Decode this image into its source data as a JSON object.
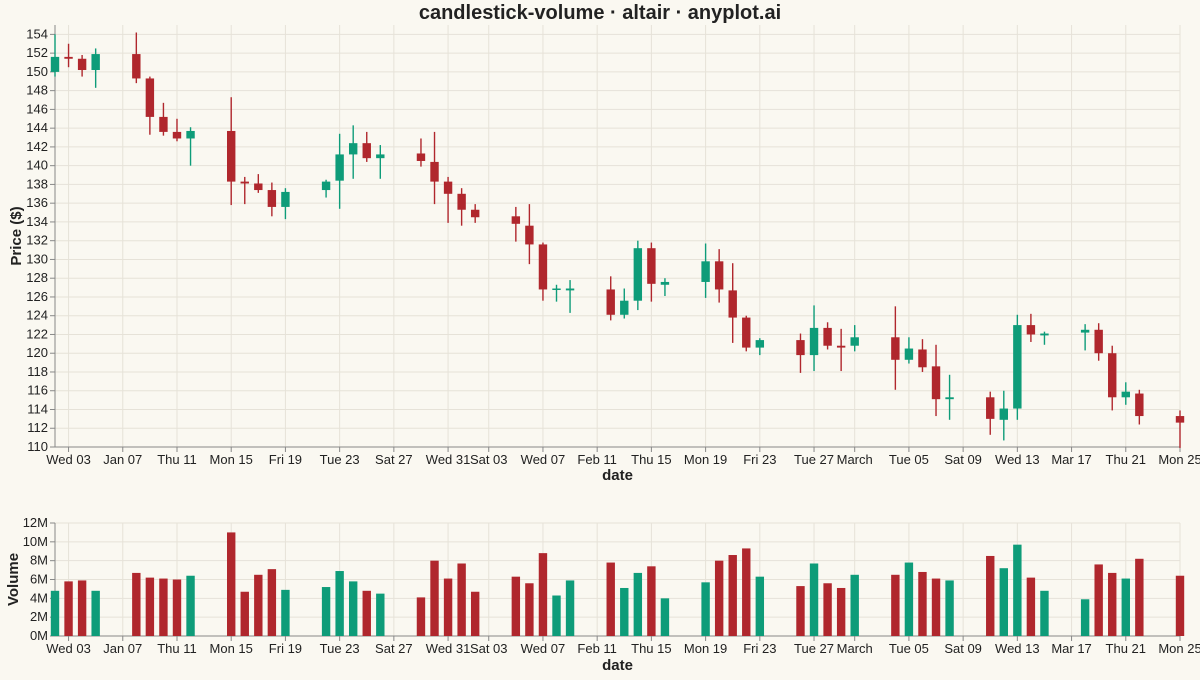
{
  "chart_data": {
    "type": "candlestick",
    "title": "candlestick-volume · altair · anyplot.ai",
    "colors": {
      "up": "#0e9c79",
      "down": "#b0272d",
      "background": "#faf8f1",
      "grid": "#e6e2d8"
    },
    "grid": true,
    "x_ticks": [
      {
        "date": "2024-01-03",
        "label": "Wed 03"
      },
      {
        "date": "2024-01-07",
        "label": "Jan 07"
      },
      {
        "date": "2024-01-11",
        "label": "Thu 11"
      },
      {
        "date": "2024-01-15",
        "label": "Mon 15"
      },
      {
        "date": "2024-01-19",
        "label": "Fri 19"
      },
      {
        "date": "2024-01-23",
        "label": "Tue 23"
      },
      {
        "date": "2024-01-27",
        "label": "Sat 27"
      },
      {
        "date": "2024-01-31",
        "label": "Wed 31"
      },
      {
        "date": "2024-02-03",
        "label": "Sat 03"
      },
      {
        "date": "2024-02-07",
        "label": "Wed 07"
      },
      {
        "date": "2024-02-11",
        "label": "Feb 11"
      },
      {
        "date": "2024-02-15",
        "label": "Thu 15"
      },
      {
        "date": "2024-02-19",
        "label": "Mon 19"
      },
      {
        "date": "2024-02-23",
        "label": "Fri 23"
      },
      {
        "date": "2024-02-27",
        "label": "Tue 27"
      },
      {
        "date": "2024-03-01",
        "label": "March"
      },
      {
        "date": "2024-03-05",
        "label": "Tue 05"
      },
      {
        "date": "2024-03-09",
        "label": "Sat 09"
      },
      {
        "date": "2024-03-13",
        "label": "Wed 13"
      },
      {
        "date": "2024-03-17",
        "label": "Mar 17"
      },
      {
        "date": "2024-03-21",
        "label": "Thu 21"
      },
      {
        "date": "2024-03-25",
        "label": "Mon 25"
      }
    ],
    "x_range": [
      "2024-01-02",
      "2024-03-25"
    ],
    "price_panel": {
      "ylabel": "Price ($)",
      "xlabel": "date",
      "ylim": [
        110,
        155
      ],
      "yticks": [
        110,
        112,
        114,
        116,
        118,
        120,
        122,
        124,
        126,
        128,
        130,
        132,
        134,
        136,
        138,
        140,
        142,
        144,
        146,
        148,
        150,
        152,
        154
      ]
    },
    "volume_panel": {
      "ylabel": "Volume",
      "xlabel": "date",
      "ylim": [
        0,
        12000000
      ],
      "yticks": [
        {
          "value": 0,
          "label": "0M"
        },
        {
          "value": 2000000,
          "label": "2M"
        },
        {
          "value": 4000000,
          "label": "4M"
        },
        {
          "value": 6000000,
          "label": "6M"
        },
        {
          "value": 8000000,
          "label": "8M"
        },
        {
          "value": 10000000,
          "label": "10M"
        },
        {
          "value": 12000000,
          "label": "12M"
        }
      ]
    },
    "candles": [
      {
        "date": "2024-01-02",
        "open": 150.0,
        "high": 154.0,
        "low": 149.5,
        "close": 151.6,
        "volume": 4800000
      },
      {
        "date": "2024-01-03",
        "open": 151.6,
        "high": 153.0,
        "low": 150.5,
        "close": 151.4,
        "volume": 5800000
      },
      {
        "date": "2024-01-04",
        "open": 151.4,
        "high": 151.8,
        "low": 149.5,
        "close": 150.2,
        "volume": 5900000
      },
      {
        "date": "2024-01-05",
        "open": 150.2,
        "high": 152.5,
        "low": 148.3,
        "close": 151.9,
        "volume": 4800000
      },
      {
        "date": "2024-01-08",
        "open": 151.9,
        "high": 154.2,
        "low": 148.8,
        "close": 149.3,
        "volume": 6700000
      },
      {
        "date": "2024-01-09",
        "open": 149.3,
        "high": 149.5,
        "low": 143.3,
        "close": 145.2,
        "volume": 6200000
      },
      {
        "date": "2024-01-10",
        "open": 145.2,
        "high": 146.7,
        "low": 143.2,
        "close": 143.6,
        "volume": 6100000
      },
      {
        "date": "2024-01-11",
        "open": 143.6,
        "high": 145.0,
        "low": 142.6,
        "close": 142.9,
        "volume": 6000000
      },
      {
        "date": "2024-01-12",
        "open": 142.9,
        "high": 144.1,
        "low": 140.0,
        "close": 143.7,
        "volume": 6400000
      },
      {
        "date": "2024-01-15",
        "open": 143.7,
        "high": 147.3,
        "low": 135.8,
        "close": 138.3,
        "volume": 11000000
      },
      {
        "date": "2024-01-16",
        "open": 138.3,
        "high": 138.8,
        "low": 135.9,
        "close": 138.1,
        "volume": 4700000
      },
      {
        "date": "2024-01-17",
        "open": 138.1,
        "high": 139.1,
        "low": 137.1,
        "close": 137.4,
        "volume": 6500000
      },
      {
        "date": "2024-01-18",
        "open": 137.4,
        "high": 138.2,
        "low": 134.6,
        "close": 135.6,
        "volume": 7100000
      },
      {
        "date": "2024-01-19",
        "open": 135.6,
        "high": 137.6,
        "low": 134.3,
        "close": 137.2,
        "volume": 4900000
      },
      {
        "date": "2024-01-22",
        "open": 137.4,
        "high": 138.5,
        "low": 136.6,
        "close": 138.3,
        "volume": 5200000
      },
      {
        "date": "2024-01-23",
        "open": 138.4,
        "high": 143.4,
        "low": 135.4,
        "close": 141.2,
        "volume": 6900000
      },
      {
        "date": "2024-01-24",
        "open": 141.2,
        "high": 144.3,
        "low": 138.6,
        "close": 142.4,
        "volume": 5800000
      },
      {
        "date": "2024-01-25",
        "open": 142.4,
        "high": 143.6,
        "low": 140.4,
        "close": 140.8,
        "volume": 4800000
      },
      {
        "date": "2024-01-26",
        "open": 140.8,
        "high": 142.2,
        "low": 138.6,
        "close": 141.2,
        "volume": 4500000
      },
      {
        "date": "2024-01-29",
        "open": 141.3,
        "high": 142.9,
        "low": 139.9,
        "close": 140.5,
        "volume": 4100000
      },
      {
        "date": "2024-01-30",
        "open": 140.4,
        "high": 143.6,
        "low": 135.9,
        "close": 138.3,
        "volume": 8000000
      },
      {
        "date": "2024-01-31",
        "open": 138.3,
        "high": 138.8,
        "low": 133.9,
        "close": 137.0,
        "volume": 6100000
      },
      {
        "date": "2024-02-01",
        "open": 137.0,
        "high": 137.6,
        "low": 133.6,
        "close": 135.3,
        "volume": 7700000
      },
      {
        "date": "2024-02-02",
        "open": 135.3,
        "high": 135.9,
        "low": 133.9,
        "close": 134.5,
        "volume": 4700000
      },
      {
        "date": "2024-02-05",
        "open": 134.6,
        "high": 135.6,
        "low": 131.9,
        "close": 133.8,
        "volume": 6300000
      },
      {
        "date": "2024-02-06",
        "open": 133.6,
        "high": 135.9,
        "low": 129.5,
        "close": 131.6,
        "volume": 5600000
      },
      {
        "date": "2024-02-07",
        "open": 131.6,
        "high": 131.8,
        "low": 125.6,
        "close": 126.8,
        "volume": 8800000
      },
      {
        "date": "2024-02-08",
        "open": 126.8,
        "high": 127.3,
        "low": 125.5,
        "close": 126.9,
        "volume": 4300000
      },
      {
        "date": "2024-02-09",
        "open": 126.7,
        "high": 127.8,
        "low": 124.3,
        "close": 126.9,
        "volume": 5900000
      },
      {
        "date": "2024-02-12",
        "open": 126.8,
        "high": 128.2,
        "low": 123.5,
        "close": 124.1,
        "volume": 7800000
      },
      {
        "date": "2024-02-13",
        "open": 124.1,
        "high": 126.9,
        "low": 123.7,
        "close": 125.6,
        "volume": 5100000
      },
      {
        "date": "2024-02-14",
        "open": 125.6,
        "high": 132.0,
        "low": 124.6,
        "close": 131.2,
        "volume": 6700000
      },
      {
        "date": "2024-02-15",
        "open": 131.2,
        "high": 131.8,
        "low": 125.5,
        "close": 127.4,
        "volume": 7400000
      },
      {
        "date": "2024-02-16",
        "open": 127.3,
        "high": 128.0,
        "low": 126.1,
        "close": 127.6,
        "volume": 4000000
      },
      {
        "date": "2024-02-19",
        "open": 127.6,
        "high": 131.7,
        "low": 125.9,
        "close": 129.8,
        "volume": 5700000
      },
      {
        "date": "2024-02-20",
        "open": 129.8,
        "high": 131.1,
        "low": 125.4,
        "close": 126.8,
        "volume": 8000000
      },
      {
        "date": "2024-02-21",
        "open": 126.7,
        "high": 129.6,
        "low": 121.1,
        "close": 123.8,
        "volume": 8600000
      },
      {
        "date": "2024-02-22",
        "open": 123.8,
        "high": 124.0,
        "low": 120.2,
        "close": 120.6,
        "volume": 9300000
      },
      {
        "date": "2024-02-23",
        "open": 120.6,
        "high": 121.6,
        "low": 119.8,
        "close": 121.4,
        "volume": 6300000
      },
      {
        "date": "2024-02-26",
        "open": 121.4,
        "high": 122.1,
        "low": 117.9,
        "close": 119.8,
        "volume": 5300000
      },
      {
        "date": "2024-02-27",
        "open": 119.8,
        "high": 125.1,
        "low": 118.1,
        "close": 122.7,
        "volume": 7700000
      },
      {
        "date": "2024-02-28",
        "open": 122.7,
        "high": 123.3,
        "low": 120.4,
        "close": 120.8,
        "volume": 5600000
      },
      {
        "date": "2024-02-29",
        "open": 120.8,
        "high": 122.6,
        "low": 118.1,
        "close": 120.6,
        "volume": 5100000
      },
      {
        "date": "2024-03-01",
        "open": 120.8,
        "high": 123.0,
        "low": 120.2,
        "close": 121.7,
        "volume": 6500000
      },
      {
        "date": "2024-03-04",
        "open": 121.7,
        "high": 125.0,
        "low": 116.1,
        "close": 119.3,
        "volume": 6500000
      },
      {
        "date": "2024-03-05",
        "open": 119.3,
        "high": 121.7,
        "low": 118.9,
        "close": 120.5,
        "volume": 7800000
      },
      {
        "date": "2024-03-06",
        "open": 120.4,
        "high": 121.5,
        "low": 118.0,
        "close": 118.5,
        "volume": 6800000
      },
      {
        "date": "2024-03-07",
        "open": 118.6,
        "high": 120.9,
        "low": 113.3,
        "close": 115.1,
        "volume": 6100000
      },
      {
        "date": "2024-03-08",
        "open": 115.1,
        "high": 117.7,
        "low": 112.9,
        "close": 115.3,
        "volume": 5900000
      },
      {
        "date": "2024-03-11",
        "open": 115.3,
        "high": 115.9,
        "low": 111.3,
        "close": 113.0,
        "volume": 8500000
      },
      {
        "date": "2024-03-12",
        "open": 112.9,
        "high": 116.0,
        "low": 110.7,
        "close": 114.1,
        "volume": 7200000
      },
      {
        "date": "2024-03-13",
        "open": 114.1,
        "high": 124.1,
        "low": 112.9,
        "close": 123.0,
        "volume": 9700000
      },
      {
        "date": "2024-03-14",
        "open": 123.0,
        "high": 124.2,
        "low": 121.2,
        "close": 122.0,
        "volume": 6200000
      },
      {
        "date": "2024-03-15",
        "open": 121.9,
        "high": 122.3,
        "low": 120.9,
        "close": 122.1,
        "volume": 4800000
      },
      {
        "date": "2024-03-18",
        "open": 122.2,
        "high": 123.1,
        "low": 120.3,
        "close": 122.5,
        "volume": 3900000
      },
      {
        "date": "2024-03-19",
        "open": 122.5,
        "high": 123.2,
        "low": 119.2,
        "close": 120.0,
        "volume": 7600000
      },
      {
        "date": "2024-03-20",
        "open": 120.0,
        "high": 120.8,
        "low": 113.9,
        "close": 115.3,
        "volume": 6700000
      },
      {
        "date": "2024-03-21",
        "open": 115.3,
        "high": 116.9,
        "low": 114.5,
        "close": 115.9,
        "volume": 6100000
      },
      {
        "date": "2024-03-22",
        "open": 115.7,
        "high": 116.1,
        "low": 112.4,
        "close": 113.3,
        "volume": 8200000
      },
      {
        "date": "2024-03-25",
        "open": 113.3,
        "high": 113.9,
        "low": 109.9,
        "close": 112.6,
        "volume": 6400000
      }
    ]
  }
}
